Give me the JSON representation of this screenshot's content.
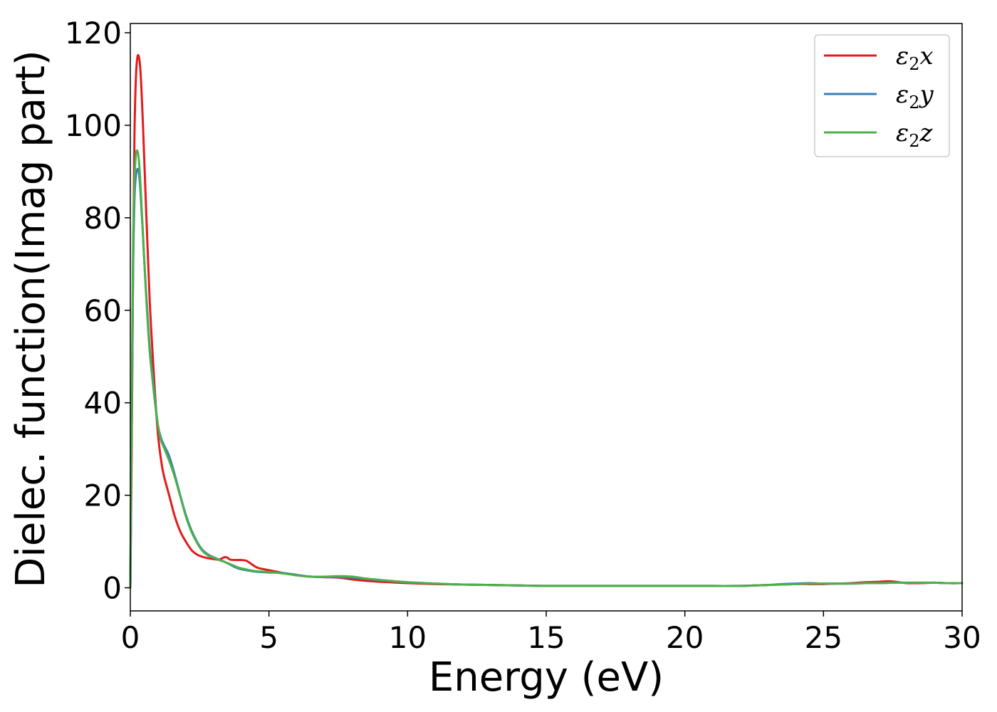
{
  "chart_data": {
    "type": "line",
    "title": "",
    "xlabel": "Energy (eV)",
    "ylabel": "Dielec. function(Imag part)",
    "xlim": [
      0,
      30
    ],
    "ylim": [
      -5,
      122
    ],
    "xticks": [
      0,
      5,
      10,
      15,
      20,
      25,
      30
    ],
    "yticks": [
      0,
      20,
      40,
      60,
      80,
      100,
      120
    ],
    "grid": false,
    "legend_position": "top-right",
    "series": [
      {
        "name": "ε2x",
        "legend_base": "ε",
        "legend_sub": "2",
        "legend_suffix": "x",
        "color": "#e41a1c",
        "x": [
          0,
          0.05,
          0.1,
          0.15,
          0.2,
          0.25,
          0.3,
          0.35,
          0.4,
          0.45,
          0.5,
          0.6,
          0.7,
          0.8,
          0.9,
          1.0,
          1.1,
          1.2,
          1.4,
          1.6,
          1.8,
          2.0,
          2.2,
          2.4,
          2.6,
          2.8,
          3.0,
          3.2,
          3.4,
          3.5,
          3.6,
          3.8,
          4.0,
          4.2,
          4.4,
          4.6,
          5.0,
          5.5,
          6.0,
          6.5,
          7.0,
          7.5,
          8.0,
          8.5,
          9.0,
          10.0,
          11.0,
          12.0,
          13.0,
          14.0,
          15.0,
          16.0,
          17.0,
          18.0,
          19.0,
          20.0,
          21.0,
          22.0,
          22.5,
          23.0,
          23.5,
          24.0,
          24.5,
          25.0,
          25.5,
          26.0,
          26.5,
          27.0,
          27.3,
          27.6,
          28.0,
          28.5,
          29.0,
          29.5,
          30.0
        ],
        "y": [
          0,
          30,
          70,
          98,
          110,
          114.5,
          115,
          113,
          108,
          101,
          93,
          77,
          62,
          51,
          41,
          33,
          28,
          24.5,
          20,
          15.5,
          12.2,
          10,
          8.2,
          7.2,
          6.7,
          6.4,
          6.2,
          6.1,
          6.6,
          6.5,
          6.1,
          6,
          6,
          5.8,
          5,
          4.3,
          3.8,
          3.2,
          2.7,
          2.4,
          2.3,
          2.2,
          1.8,
          1.5,
          1.3,
          1,
          0.8,
          0.7,
          0.6,
          0.5,
          0.4,
          0.4,
          0.4,
          0.4,
          0.4,
          0.4,
          0.4,
          0.4,
          0.5,
          0.6,
          0.7,
          0.8,
          0.8,
          0.8,
          0.9,
          1,
          1.2,
          1.3,
          1.4,
          1.3,
          1,
          1,
          1.1,
          1,
          1
        ]
      },
      {
        "name": "ε2y",
        "legend_base": "ε",
        "legend_sub": "2",
        "legend_suffix": "y",
        "color": "#377eb8",
        "x": [
          0,
          0.05,
          0.1,
          0.15,
          0.2,
          0.25,
          0.3,
          0.35,
          0.4,
          0.45,
          0.5,
          0.6,
          0.7,
          0.8,
          0.9,
          1.0,
          1.1,
          1.2,
          1.4,
          1.6,
          1.8,
          2.0,
          2.2,
          2.4,
          2.6,
          2.8,
          3.0,
          3.2,
          3.4,
          3.6,
          3.8,
          4.0,
          4.5,
          5.0,
          5.5,
          6.0,
          6.5,
          7.0,
          7.5,
          8.0,
          8.5,
          9.0,
          10.0,
          11.0,
          12.0,
          13.0,
          14.0,
          15.0,
          16.0,
          17.0,
          18.0,
          19.0,
          20.0,
          21.0,
          22.0,
          22.5,
          23.0,
          23.5,
          24.0,
          24.5,
          25.0,
          25.5,
          26.0,
          26.5,
          27.0,
          27.5,
          28.0,
          28.5,
          29.0,
          29.5,
          30.0
        ],
        "y": [
          0,
          35,
          68,
          84,
          89,
          90.5,
          90,
          87,
          82,
          77,
          71,
          61,
          52,
          46,
          40,
          35,
          32.5,
          31,
          28.5,
          24.5,
          20,
          15.8,
          12.5,
          10,
          8.2,
          7.2,
          6.6,
          6.1,
          5.6,
          5,
          4.4,
          4,
          3.5,
          3.3,
          3.2,
          2.8,
          2.4,
          2.3,
          2.3,
          2.2,
          1.9,
          1.6,
          1.2,
          0.9,
          0.7,
          0.6,
          0.5,
          0.4,
          0.4,
          0.4,
          0.4,
          0.4,
          0.4,
          0.4,
          0.4,
          0.5,
          0.6,
          0.8,
          0.9,
          1,
          0.9,
          0.9,
          0.9,
          1,
          1,
          1.1,
          1.1,
          1.1,
          1.1,
          1,
          1
        ]
      },
      {
        "name": "ε2z",
        "legend_base": "ε",
        "legend_sub": "2",
        "legend_suffix": "z",
        "color": "#4daf4a",
        "x": [
          0,
          0.05,
          0.1,
          0.15,
          0.2,
          0.25,
          0.3,
          0.35,
          0.4,
          0.45,
          0.5,
          0.6,
          0.7,
          0.8,
          0.9,
          1.0,
          1.1,
          1.2,
          1.4,
          1.6,
          1.8,
          2.0,
          2.2,
          2.4,
          2.6,
          2.8,
          3.0,
          3.2,
          3.4,
          3.6,
          3.8,
          4.0,
          4.5,
          5.0,
          5.5,
          6.0,
          6.5,
          7.0,
          7.5,
          8.0,
          8.5,
          9.0,
          10.0,
          11.0,
          12.0,
          13.0,
          14.0,
          15.0,
          16.0,
          17.0,
          18.0,
          19.0,
          20.0,
          21.0,
          22.0,
          22.5,
          23.0,
          23.5,
          24.0,
          24.5,
          25.0,
          25.5,
          26.0,
          26.5,
          27.0,
          27.5,
          28.0,
          28.5,
          29.0,
          29.5,
          30.0
        ],
        "y": [
          0,
          38,
          73,
          88,
          93.5,
          94.5,
          93,
          89,
          83,
          77,
          71,
          60,
          51,
          45,
          39.5,
          35,
          32,
          30.5,
          27.5,
          24,
          19.8,
          15.5,
          12.2,
          9.8,
          8,
          7,
          6.5,
          6,
          5.6,
          5.1,
          4.6,
          4.2,
          3.6,
          3.4,
          3.1,
          2.7,
          2.4,
          2.4,
          2.5,
          2.4,
          2,
          1.7,
          1.2,
          0.9,
          0.7,
          0.6,
          0.5,
          0.4,
          0.4,
          0.4,
          0.4,
          0.4,
          0.4,
          0.4,
          0.4,
          0.5,
          0.6,
          0.7,
          0.8,
          0.9,
          0.9,
          0.9,
          0.9,
          1,
          1,
          1.1,
          1.1,
          1.1,
          1.1,
          1,
          1
        ]
      }
    ]
  }
}
